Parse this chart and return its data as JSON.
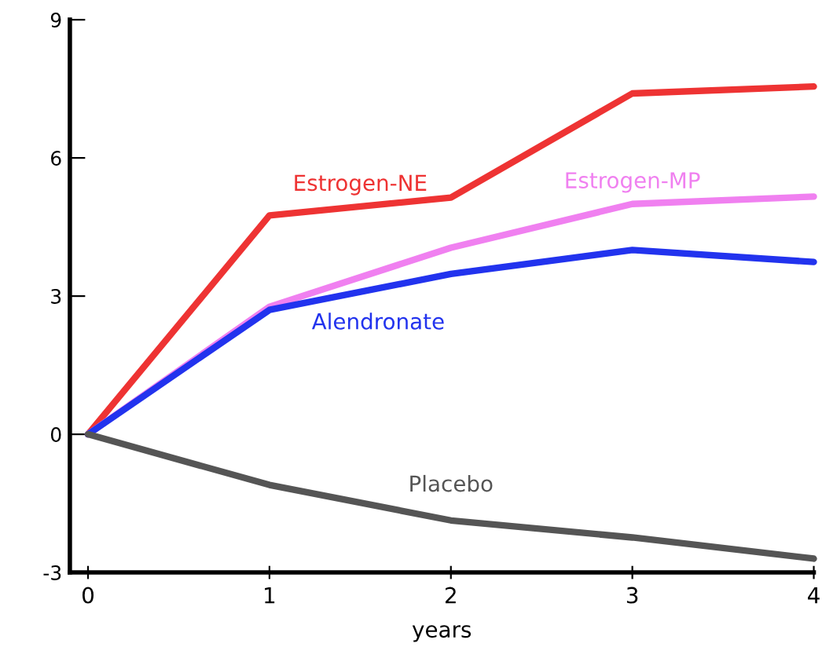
{
  "chart_data": {
    "type": "line",
    "xlabel": "years",
    "x": [
      0,
      1,
      2,
      3,
      4
    ],
    "series": [
      {
        "name": "Estrogen-NE",
        "color": "#ee3333",
        "values": [
          0,
          4.75,
          5.14,
          7.4,
          7.55
        ]
      },
      {
        "name": "Estrogen-MP",
        "color": "#f080f0",
        "values": [
          0,
          2.77,
          4.05,
          5.0,
          5.16
        ]
      },
      {
        "name": "Alendronate",
        "color": "#2233ee",
        "values": [
          0,
          2.7,
          3.48,
          4.0,
          3.74
        ]
      },
      {
        "name": "Placebo",
        "color": "#555555",
        "values": [
          0,
          -1.1,
          -1.87,
          -2.24,
          -2.7
        ]
      }
    ],
    "xlim": [
      -0.1,
      4
    ],
    "ylim": [
      -3,
      9
    ],
    "xticks": [
      0,
      1,
      2,
      3,
      4
    ],
    "yticks": [
      -3,
      0,
      3,
      6,
      9
    ],
    "grid": false,
    "legend": false,
    "marker": "none",
    "line_style": "solid"
  }
}
